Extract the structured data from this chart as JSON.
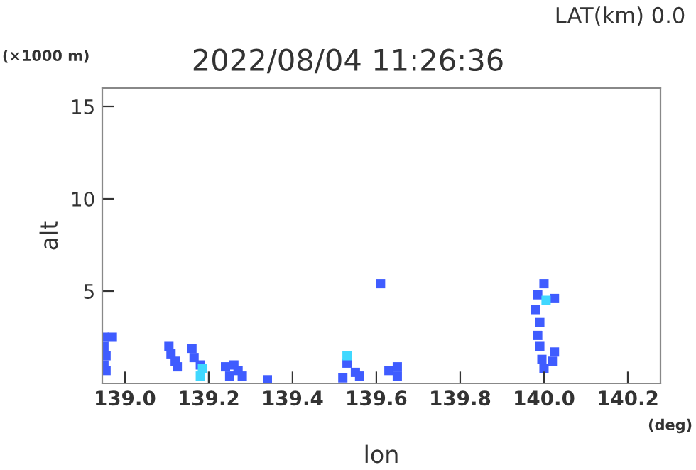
{
  "chart_data": {
    "type": "scatter",
    "title": "2022/08/04 11:26:36",
    "subtitle": "LAT(km) 0.0",
    "xlabel": "lon",
    "ylabel": "alt",
    "annotations": [
      "(×1000 m)",
      "(deg)"
    ],
    "series": [
      {
        "color": "#3f5cff",
        "x": [
          138.95,
          138.95,
          138.955,
          138.95,
          138.955,
          138.97,
          139.105,
          139.11,
          139.12,
          139.125,
          139.16,
          139.165,
          139.18,
          139.24,
          139.26,
          139.27,
          139.28,
          139.25,
          139.34,
          139.52,
          139.53,
          139.55,
          139.56,
          139.63,
          139.65,
          139.65,
          139.61,
          140.0,
          139.985,
          140.025,
          139.98,
          139.99,
          139.985,
          139.99,
          139.995,
          140.0,
          140.025,
          140.02
        ],
        "values": [
          2.5,
          2.0,
          1.5,
          1.0,
          0.7,
          2.5,
          2.0,
          1.6,
          1.2,
          0.9,
          1.9,
          1.4,
          1.0,
          0.9,
          1.0,
          0.7,
          0.4,
          0.4,
          0.2,
          0.3,
          1.1,
          0.6,
          0.4,
          0.7,
          0.9,
          0.4,
          5.4,
          5.4,
          4.8,
          4.6,
          4.0,
          3.3,
          2.6,
          2.0,
          1.3,
          0.8,
          1.7,
          1.2
        ]
      },
      {
        "color": "#40d8ff",
        "x": [
          139.18,
          139.185,
          139.53,
          140.005
        ],
        "values": [
          0.4,
          0.8,
          1.5,
          4.5
        ]
      }
    ],
    "marker": "square",
    "xlim": [
      138.946,
      140.278
    ],
    "ylim": [
      0,
      16
    ],
    "xticks": [
      {
        "value": 139.0,
        "label": "139.0"
      },
      {
        "value": 139.2,
        "label": "139.2"
      },
      {
        "value": 139.4,
        "label": "139.4"
      },
      {
        "value": 139.6,
        "label": "139.6"
      },
      {
        "value": 139.8,
        "label": "139.8"
      },
      {
        "value": 140.0,
        "label": "140.0"
      },
      {
        "value": 140.2,
        "label": "140.2"
      }
    ],
    "yticks": [
      5,
      10,
      15
    ],
    "grid": false,
    "legend": false
  }
}
